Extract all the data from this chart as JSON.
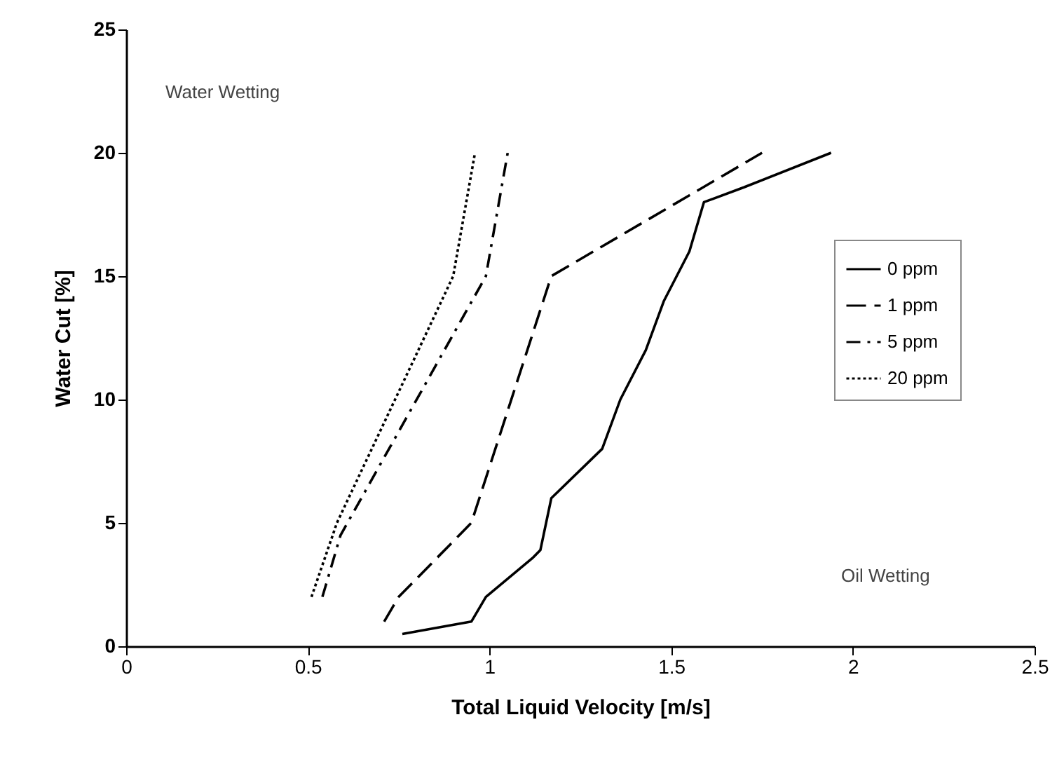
{
  "chart_data": {
    "type": "line",
    "xlabel": "Total Liquid Velocity [m/s]",
    "ylabel": "Water Cut [%]",
    "xlim": [
      0,
      2.5
    ],
    "xticks": [
      0,
      0.5,
      1,
      1.5,
      2,
      2.5
    ],
    "ylim": [
      0,
      25
    ],
    "yticks": [
      0,
      5,
      10,
      15,
      20,
      25
    ],
    "grid": false,
    "legend": "right",
    "marker": "none",
    "annotations": [
      "Water Wetting",
      "Oil Wetting"
    ],
    "series": [
      {
        "name": "0 ppm",
        "color": "#000000",
        "line_style": "solid",
        "x": [
          0.76,
          0.95,
          0.99,
          1.12,
          1.14,
          1.17,
          1.31,
          1.36,
          1.43,
          1.48,
          1.55,
          1.59,
          1.7,
          1.94
        ],
        "values": [
          0.5,
          1,
          2,
          3.6,
          3.9,
          6,
          8,
          10,
          12,
          14,
          16,
          18,
          18.6,
          20
        ]
      },
      {
        "name": "1 ppm",
        "color": "#000000",
        "line_style": "dashed",
        "x": [
          0.71,
          0.75,
          0.95,
          1.17,
          1.75
        ],
        "values": [
          1,
          2,
          5,
          15,
          20
        ]
      },
      {
        "name": "5 ppm",
        "color": "#000000",
        "line_style": "dashdot",
        "x": [
          0.54,
          0.59,
          0.99,
          1.05
        ],
        "values": [
          2,
          4.5,
          15,
          20
        ]
      },
      {
        "name": "20 ppm",
        "color": "#000000",
        "line_style": "dotted",
        "x": [
          0.51,
          0.58,
          0.9,
          0.96
        ],
        "values": [
          2,
          5,
          15,
          20
        ]
      }
    ]
  }
}
